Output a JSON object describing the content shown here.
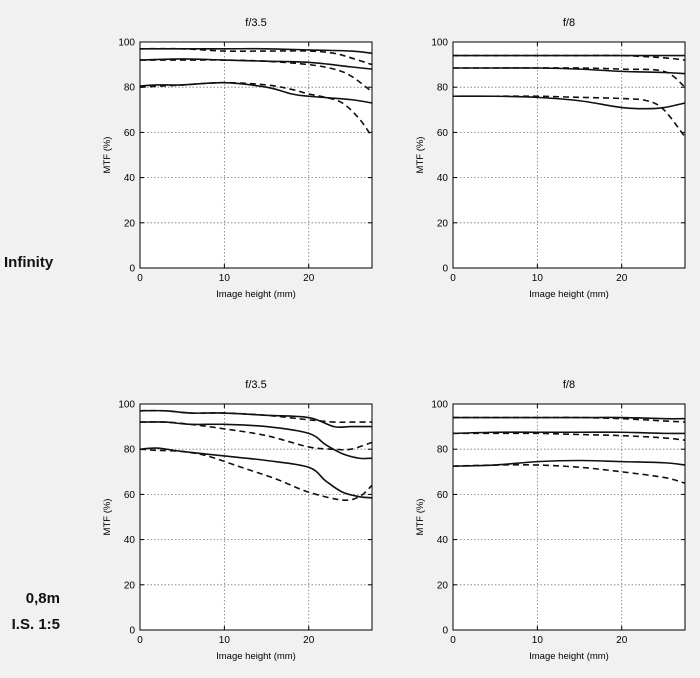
{
  "rows": [
    {
      "label": "Infinity"
    },
    {
      "label_line1": "0,8m",
      "label_line2": "I.S. 1:5"
    }
  ],
  "chart_data": [
    {
      "type": "line",
      "title": "f/3.5",
      "xlabel": "Image height (mm)",
      "ylabel": "MTF (%)",
      "xlim": [
        0,
        27.5
      ],
      "ylim": [
        0,
        100
      ],
      "xticks": [
        0,
        10,
        20
      ],
      "yticks": [
        0,
        20,
        40,
        60,
        80,
        100
      ],
      "grid": true,
      "series": [
        {
          "style": "solid",
          "x": [
            0,
            5,
            10,
            15,
            20,
            25,
            27.5
          ],
          "y": [
            97,
            97,
            97,
            97,
            96.5,
            96,
            95
          ]
        },
        {
          "style": "dashed",
          "x": [
            0,
            5,
            10,
            15,
            20,
            23,
            25,
            27.5
          ],
          "y": [
            97,
            97,
            96,
            96,
            96,
            95,
            93,
            90
          ]
        },
        {
          "style": "solid",
          "x": [
            0,
            5,
            10,
            15,
            20,
            25,
            27.5
          ],
          "y": [
            92,
            92.5,
            92,
            91.5,
            91,
            89,
            88
          ]
        },
        {
          "style": "dashed",
          "x": [
            0,
            5,
            10,
            15,
            20,
            23,
            25,
            27.5
          ],
          "y": [
            92,
            92,
            92,
            91.5,
            90,
            88,
            85,
            78
          ]
        },
        {
          "style": "solid",
          "x": [
            0,
            2,
            5,
            10,
            15,
            18,
            20,
            25,
            27.5
          ],
          "y": [
            80.5,
            81,
            81,
            82,
            80,
            77,
            76,
            74.5,
            73
          ]
        },
        {
          "style": "dashed",
          "x": [
            0,
            5,
            10,
            15,
            18,
            20,
            22,
            24,
            26,
            27.5
          ],
          "y": [
            80,
            81,
            82,
            81,
            79,
            77,
            75.5,
            73,
            66,
            58
          ]
        }
      ]
    },
    {
      "type": "line",
      "title": "f/8",
      "xlabel": "Image height (mm)",
      "ylabel": "MTF (%)",
      "xlim": [
        0,
        27.5
      ],
      "ylim": [
        0,
        100
      ],
      "xticks": [
        0,
        10,
        20
      ],
      "yticks": [
        0,
        20,
        40,
        60,
        80,
        100
      ],
      "grid": true,
      "series": [
        {
          "style": "solid",
          "x": [
            0,
            5,
            10,
            15,
            20,
            25,
            27.5
          ],
          "y": [
            94,
            94,
            94,
            94,
            94,
            94,
            94
          ]
        },
        {
          "style": "dashed",
          "x": [
            0,
            5,
            10,
            15,
            20,
            25,
            27.5
          ],
          "y": [
            94,
            94,
            94,
            94,
            94,
            93,
            92
          ]
        },
        {
          "style": "solid",
          "x": [
            0,
            5,
            10,
            15,
            20,
            25,
            27.5
          ],
          "y": [
            88.5,
            88.5,
            88.5,
            88,
            87,
            86.5,
            86
          ]
        },
        {
          "style": "dashed",
          "x": [
            0,
            5,
            10,
            15,
            20,
            25,
            27.5
          ],
          "y": [
            88.5,
            88.5,
            88.5,
            88.5,
            88,
            87,
            80
          ]
        },
        {
          "style": "solid",
          "x": [
            0,
            5,
            10,
            15,
            20,
            23,
            25,
            27.5
          ],
          "y": [
            76,
            76,
            75.5,
            74,
            71,
            70.5,
            71,
            73
          ]
        },
        {
          "style": "dashed",
          "x": [
            0,
            5,
            10,
            15,
            20,
            23,
            25,
            27.5
          ],
          "y": [
            76,
            76,
            76,
            75.5,
            75,
            74,
            70,
            58
          ]
        }
      ]
    },
    {
      "type": "line",
      "title": "f/3.5",
      "xlabel": "Image height (mm)",
      "ylabel": "MTF (%)",
      "xlim": [
        0,
        27.5
      ],
      "ylim": [
        0,
        100
      ],
      "xticks": [
        0,
        10,
        20
      ],
      "yticks": [
        0,
        20,
        40,
        60,
        80,
        100
      ],
      "grid": true,
      "series": [
        {
          "style": "solid",
          "x": [
            0,
            3,
            6,
            10,
            15,
            20,
            23,
            25,
            27.5
          ],
          "y": [
            97,
            97,
            96,
            96,
            95,
            94,
            90,
            90,
            90
          ]
        },
        {
          "style": "dashed",
          "x": [
            0,
            3,
            6,
            10,
            15,
            20,
            23,
            25,
            27.5
          ],
          "y": [
            97,
            97,
            96,
            96,
            95,
            93,
            92,
            92,
            92
          ]
        },
        {
          "style": "solid",
          "x": [
            0,
            3,
            6,
            10,
            15,
            20,
            22,
            24,
            26,
            27.5
          ],
          "y": [
            92,
            92,
            91,
            91,
            90,
            87,
            82,
            78,
            76,
            76
          ]
        },
        {
          "style": "dashed",
          "x": [
            0,
            3,
            6,
            10,
            15,
            20,
            23,
            25,
            27.5
          ],
          "y": [
            92,
            92,
            91,
            89,
            86,
            81,
            80,
            80,
            83
          ]
        },
        {
          "style": "solid",
          "x": [
            0,
            2,
            5,
            10,
            15,
            20,
            22,
            24,
            26,
            27.5
          ],
          "y": [
            80,
            80.5,
            79,
            77,
            75,
            72,
            66,
            61,
            59,
            58.5
          ]
        },
        {
          "style": "dashed",
          "x": [
            0,
            2,
            5,
            8,
            12,
            16,
            20,
            24,
            26,
            27.5
          ],
          "y": [
            80,
            79.5,
            79,
            77,
            72,
            67,
            61,
            57.5,
            59,
            64
          ]
        }
      ]
    },
    {
      "type": "line",
      "title": "f/8",
      "xlabel": "Image height (mm)",
      "ylabel": "MTF (%)",
      "xlim": [
        0,
        27.5
      ],
      "ylim": [
        0,
        100
      ],
      "xticks": [
        0,
        10,
        20
      ],
      "yticks": [
        0,
        20,
        40,
        60,
        80,
        100
      ],
      "grid": true,
      "series": [
        {
          "style": "solid",
          "x": [
            0,
            5,
            10,
            15,
            20,
            25,
            27.5
          ],
          "y": [
            94,
            94,
            94,
            94,
            94,
            93.5,
            93.5
          ]
        },
        {
          "style": "dashed",
          "x": [
            0,
            5,
            10,
            15,
            20,
            25,
            27.5
          ],
          "y": [
            94,
            94,
            94,
            94,
            93.5,
            92.5,
            92
          ]
        },
        {
          "style": "solid",
          "x": [
            0,
            5,
            10,
            15,
            20,
            25,
            27.5
          ],
          "y": [
            87,
            87.5,
            87.5,
            87.5,
            87.5,
            87,
            87
          ]
        },
        {
          "style": "dashed",
          "x": [
            0,
            5,
            10,
            15,
            20,
            25,
            27.5
          ],
          "y": [
            87,
            87,
            87,
            86.5,
            86,
            85,
            84
          ]
        },
        {
          "style": "solid",
          "x": [
            0,
            5,
            10,
            15,
            20,
            25,
            27.5
          ],
          "y": [
            72.5,
            73,
            74.5,
            75,
            74.5,
            74,
            73
          ]
        },
        {
          "style": "dashed",
          "x": [
            0,
            5,
            10,
            15,
            20,
            25,
            27.5
          ],
          "y": [
            72.5,
            73,
            73,
            72,
            70,
            67.5,
            65
          ]
        }
      ]
    }
  ]
}
